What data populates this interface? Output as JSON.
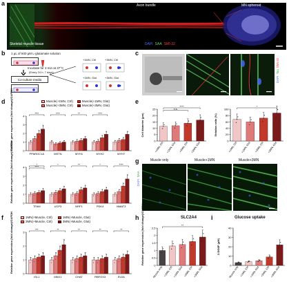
{
  "panel_a": {
    "letter": "a",
    "labels": {
      "muscle": "Skeletal muscle tissue",
      "axon": "Axon bundle",
      "spheroid": "MN spheroid"
    },
    "stain_legend": [
      {
        "text": "DAPI",
        "color": "#4a6cff"
      },
      {
        "text": "SAA",
        "color": "#5fd35f"
      },
      {
        "text": "SMI-32",
        "color": "#ff3a3a"
      }
    ]
  },
  "panel_b": {
    "letter": "b",
    "step1": "1 μL of 500 μM L-glutamate solution",
    "step2": "Incubate for 3 min at 37°C",
    "step2_sub": "(Every 24 h, 7 days)",
    "step3": "Co-culture media",
    "conditions": [
      "+1MN, Ctrl",
      "+3MN, Ctrl",
      "+1MN, Glut",
      "+3MN, Glut"
    ]
  },
  "panel_c": {
    "letter": "c",
    "stain_legend": [
      {
        "text": "DAPI",
        "color": "#4a6cff"
      },
      {
        "text": "Tau",
        "color": "#5fd35f"
      },
      {
        "text": "SMI-32",
        "color": "#ff3a3a"
      }
    ]
  },
  "panel_g": {
    "letter": "g",
    "titles": [
      "Muscle only",
      "Muscle+1MN",
      "Muscle+3MN"
    ],
    "stain_legend": [
      {
        "text": "DAPI",
        "color": "#4a6cff"
      },
      {
        "text": "SAA",
        "color": "#5fd35f"
      }
    ]
  },
  "chart_data": [
    {
      "id": "d_top",
      "letter": "d",
      "type": "bar",
      "ylabel": "Relative gene expression (fold change)/GAPDH",
      "ylim": [
        0,
        4
      ],
      "yticks": [
        0,
        1,
        2,
        3,
        4
      ],
      "categories": [
        "PPARGC1A",
        "MSTN",
        "MYH1",
        "MYH2",
        "MYH7"
      ],
      "legend": [
        "Muscle(+1MN, Ctrl)",
        "Muscle(+3MN, Ctrl)",
        "Muscle(+1MN, Glut)",
        "Muscle(+3MN, Glut)"
      ],
      "colors": [
        "#f1c6c6",
        "#e07a7a",
        "#c0392b",
        "#7a1a1a"
      ],
      "series": [
        {
          "values": [
            1.0,
            1.0,
            1.0,
            1.0,
            1.0
          ]
        },
        {
          "values": [
            1.4,
            0.8,
            1.1,
            1.1,
            1.2
          ]
        },
        {
          "values": [
            2.0,
            0.9,
            1.2,
            1.5,
            1.3
          ]
        },
        {
          "values": [
            2.5,
            1.0,
            1.4,
            1.9,
            1.9
          ]
        }
      ],
      "sig": [
        "****",
        "****",
        "**",
        "****"
      ]
    },
    {
      "id": "d_bottom",
      "type": "bar",
      "ylabel": "Relative gene expression (fold change)/GAPDH",
      "ylim": [
        0,
        4
      ],
      "yticks": [
        0,
        1,
        2,
        3,
        4
      ],
      "categories": [
        "TFAM",
        "UCP3",
        "NRF1",
        "PDK4",
        "NMAT3"
      ],
      "colors": [
        "#f1c6c6",
        "#e07a7a",
        "#c0392b",
        "#7a1a1a"
      ],
      "series": [
        {
          "values": [
            1.0,
            1.0,
            1.0,
            1.0,
            1.0
          ]
        },
        {
          "values": [
            1.1,
            1.2,
            1.1,
            1.1,
            1.3
          ]
        },
        {
          "values": [
            1.2,
            1.4,
            1.5,
            1.3,
            1.9
          ]
        },
        {
          "values": [
            1.4,
            1.6,
            1.7,
            1.5,
            2.7
          ]
        }
      ],
      "sig": [
        "*",
        "*",
        "**",
        "*",
        "****",
        "****"
      ]
    },
    {
      "id": "e_left",
      "letter": "e",
      "type": "bar",
      "ylabel": "Cell diameter (μm)",
      "ylim": [
        0,
        25
      ],
      "yticks": [
        0,
        5,
        10,
        15,
        20,
        25
      ],
      "categories": [
        "+1MN, Ctrl",
        "+1MN, Glut",
        "+3MN, Ctrl",
        "+3MN, Glut"
      ],
      "colors": [
        "#f1c6c6",
        "#e07a7a",
        "#c0392b",
        "#7a1a1a"
      ],
      "values": [
        11.5,
        12.0,
        14.0,
        16.5
      ],
      "sig": [
        "****",
        "n.s."
      ]
    },
    {
      "id": "e_right",
      "type": "bar",
      "ylabel": "Striation ratio (%)",
      "ylim": [
        0,
        100
      ],
      "yticks": [
        0,
        20,
        40,
        60,
        80,
        100
      ],
      "categories": [
        "+1MN, Ctrl",
        "+1MN, Glut",
        "+3MN, Ctrl",
        "+3MN, Glut"
      ],
      "colors": [
        "#f1c6c6",
        "#e07a7a",
        "#c0392b",
        "#7a1a1a"
      ],
      "values": [
        68,
        60,
        72,
        88
      ],
      "sig": [
        "*"
      ]
    },
    {
      "id": "f",
      "letter": "f",
      "type": "bar",
      "ylabel": "Relative gene expression (fold change)/GAPDH",
      "ylim": [
        0,
        3
      ],
      "yticks": [
        0,
        1,
        2,
        3
      ],
      "categories": [
        "ISL1",
        "MNX1",
        "CHAT",
        "RBFOX3",
        "SV2A"
      ],
      "legend": [
        "1MN(+Muscle, Ctrl)",
        "3MN(+Muscle, Ctrl)",
        "1MN(+Muscle, Glut)",
        "3MN(+Muscle, Glut)"
      ],
      "colors": [
        "#f1c6c6",
        "#e07a7a",
        "#c0392b",
        "#7a1a1a"
      ],
      "series": [
        {
          "values": [
            1.0,
            1.0,
            1.0,
            1.0,
            1.0
          ]
        },
        {
          "values": [
            1.1,
            1.3,
            1.1,
            1.0,
            1.1
          ]
        },
        {
          "values": [
            1.2,
            1.7,
            1.2,
            1.1,
            1.2
          ]
        },
        {
          "values": [
            1.3,
            2.1,
            1.3,
            1.2,
            1.4
          ]
        }
      ],
      "sig": [
        "***",
        "**",
        "**",
        "**",
        "**"
      ]
    },
    {
      "id": "h",
      "letter": "h",
      "type": "bar",
      "title": "SLC2A4",
      "ylabel": "Relative gene expression (fold change)/GAPDH",
      "ylim": [
        0,
        2.5
      ],
      "yticks": [
        0,
        0.5,
        1,
        1.5,
        2,
        2.5
      ],
      "categories": [
        "Muscle only",
        "+1MN, Ctrl",
        "+1MN, Glut",
        "+3MN, Ctrl",
        "+3MN, Glut"
      ],
      "colors": [
        "#444444",
        "#f1c6c6",
        "#e07a7a",
        "#c0392b",
        "#7a1a1a"
      ],
      "values": [
        1.0,
        1.3,
        1.4,
        1.6,
        1.9
      ],
      "sig": [
        "**"
      ]
    },
    {
      "id": "i",
      "letter": "i",
      "type": "bar",
      "title": "Glucose uptake",
      "ylabel": "2-DG6P (μM)",
      "ylim": [
        0,
        40
      ],
      "yticks": [
        0,
        10,
        20,
        30,
        40
      ],
      "categories": [
        "Muscle only",
        "+1MN, Ctrl",
        "+1MN, Glut",
        "+3MN, Ctrl",
        "+3MN, Glut"
      ],
      "colors": [
        "#444444",
        "#f1c6c6",
        "#e07a7a",
        "#c0392b",
        "#7a1a1a"
      ],
      "values": [
        3,
        4,
        5,
        9,
        22
      ],
      "sig": []
    }
  ]
}
